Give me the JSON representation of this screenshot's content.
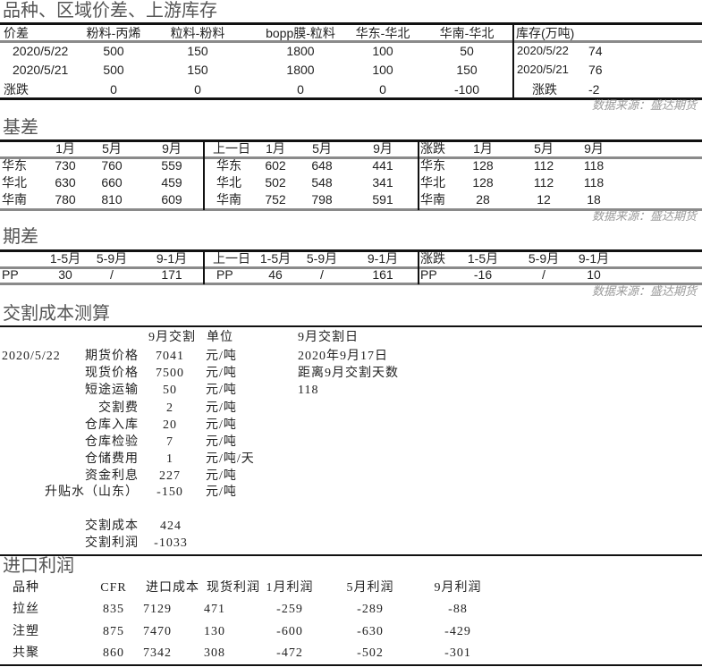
{
  "spread": {
    "title": "品种、区域价差、上游库存",
    "header": [
      "价差",
      "粉料-丙烯",
      "粒料-粉料",
      "bopp膜-粒料",
      "华东-华北",
      "华南-华北"
    ],
    "rows": [
      {
        "label": "2020/5/22",
        "values": [
          "500",
          "150",
          "1800",
          "100",
          "50"
        ]
      },
      {
        "label": "2020/5/21",
        "values": [
          "500",
          "150",
          "1800",
          "100",
          "150"
        ]
      },
      {
        "label": "涨跌",
        "values": [
          "0",
          "0",
          "0",
          "0",
          "-100"
        ]
      }
    ],
    "inventory": {
      "header": "库存(万吨)",
      "rows": [
        {
          "label": "2020/5/22",
          "value": "74"
        },
        {
          "label": "2020/5/21",
          "value": "76"
        },
        {
          "label": "涨跌",
          "value": "-2"
        }
      ]
    },
    "source": "数据来源：盛达期货"
  },
  "basis": {
    "title": "基差",
    "groups": [
      {
        "label": "",
        "header": [
          "1月",
          "5月",
          "9月"
        ],
        "rows": [
          {
            "region": "华东",
            "values": [
              "730",
              "760",
              "559"
            ]
          },
          {
            "region": "华北",
            "values": [
              "630",
              "660",
              "459"
            ]
          },
          {
            "region": "华南",
            "values": [
              "780",
              "810",
              "609"
            ]
          }
        ]
      },
      {
        "label": "上一日",
        "header": [
          "1月",
          "5月",
          "9月"
        ],
        "rows": [
          {
            "region": "华东",
            "values": [
              "602",
              "648",
              "441"
            ]
          },
          {
            "region": "华北",
            "values": [
              "502",
              "548",
              "341"
            ]
          },
          {
            "region": "华南",
            "values": [
              "752",
              "798",
              "591"
            ]
          }
        ]
      },
      {
        "label": "涨跌",
        "header": [
          "1月",
          "5月",
          "9月"
        ],
        "rows": [
          {
            "region": "华东",
            "values": [
              "128",
              "112",
              "118"
            ]
          },
          {
            "region": "华北",
            "values": [
              "128",
              "112",
              "118"
            ]
          },
          {
            "region": "华南",
            "values": [
              "28",
              "12",
              "18"
            ]
          }
        ]
      }
    ],
    "source": "数据来源：盛达期货"
  },
  "calendar": {
    "title": "期差",
    "groups": [
      {
        "label": "",
        "header": [
          "1-5月",
          "5-9月",
          "9-1月"
        ],
        "rows": [
          {
            "region": "PP",
            "values": [
              "30",
              "/",
              "171"
            ]
          }
        ]
      },
      {
        "label": "上一日",
        "header": [
          "1-5月",
          "5-9月",
          "9-1月"
        ],
        "rows": [
          {
            "region": "PP",
            "values": [
              "46",
              "/",
              "161"
            ]
          }
        ]
      },
      {
        "label": "涨跌",
        "header": [
          "1-5月",
          "5-9月",
          "9-1月"
        ],
        "rows": [
          {
            "region": "PP",
            "values": [
              "-16",
              "/",
              "10"
            ]
          }
        ]
      }
    ],
    "source": "数据来源：盛达期货"
  },
  "delivery": {
    "title": "交割成本测算",
    "col_delivery": "9月交割",
    "col_unit": "单位",
    "date": "2020/5/22",
    "items": [
      {
        "label": "期货价格",
        "value": "7041",
        "unit": "元/吨"
      },
      {
        "label": "现货价格",
        "value": "7500",
        "unit": "元/吨"
      },
      {
        "label": "短途运输",
        "value": "50",
        "unit": "元/吨"
      },
      {
        "label": "交割费",
        "value": "2",
        "unit": "元/吨"
      },
      {
        "label": "仓库入库",
        "value": "20",
        "unit": "元/吨"
      },
      {
        "label": "仓库检验",
        "value": "7",
        "unit": "元/吨"
      },
      {
        "label": "仓储费用",
        "value": "1",
        "unit": "元/吨/天"
      },
      {
        "label": "资金利息",
        "value": "227",
        "unit": "元/吨"
      },
      {
        "label": "升贴水（山东）",
        "value": "-150",
        "unit": "元/吨"
      }
    ],
    "cost": {
      "label": "交割成本",
      "value": "424"
    },
    "profit": {
      "label": "交割利润",
      "value": "-1033"
    },
    "delivery_day_label": "9月交割日",
    "delivery_day": "2020年9月17日",
    "days_label": "距离9月交割天数",
    "days": "118"
  },
  "import": {
    "title": "进口利润",
    "headers": [
      "品种",
      "CFR",
      "进口成本",
      "现货利润",
      "1月利润",
      "5月利润",
      "9月利润"
    ],
    "rows": [
      [
        "拉丝",
        "835",
        "7129",
        "471",
        "-259",
        "-289",
        "-88"
      ],
      [
        "注塑",
        "875",
        "7470",
        "130",
        "-600",
        "-630",
        "-429"
      ],
      [
        "共聚",
        "860",
        "7342",
        "308",
        "-472",
        "-502",
        "-301"
      ]
    ]
  }
}
